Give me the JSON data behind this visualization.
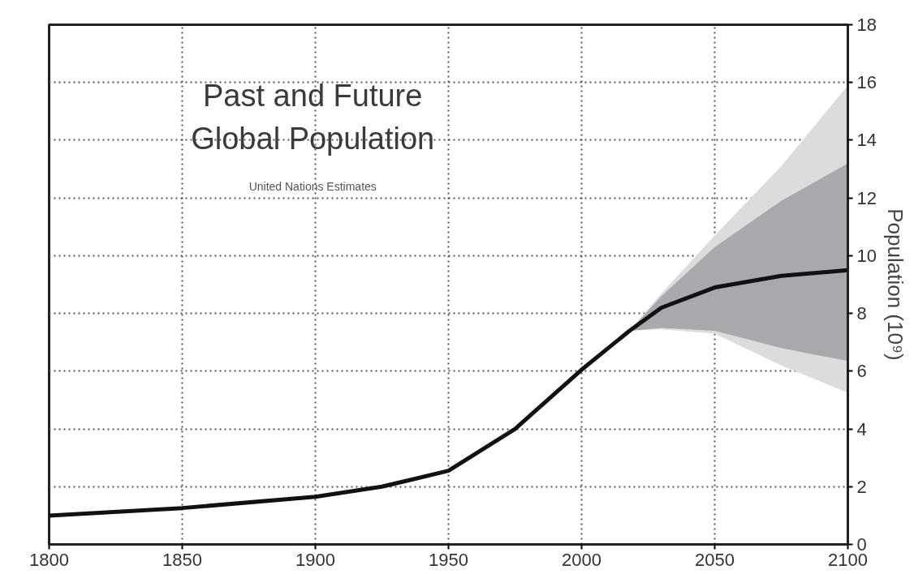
{
  "chart_data": {
    "type": "line",
    "title": "Past and Future Global Population",
    "subtitle": "United Nations Estimates",
    "y2label": "Population (10⁹)",
    "xlim": [
      1800,
      2100
    ],
    "xticks": [
      1800,
      1850,
      1900,
      1950,
      2000,
      2050,
      2100
    ],
    "y2lim": [
      0,
      18
    ],
    "y2ticks": [
      0,
      2,
      4,
      6,
      8,
      10,
      12,
      14,
      16,
      18
    ],
    "grid": true,
    "line_style": "solid",
    "marker": "none",
    "series": [
      {
        "axis": "y2",
        "color": "#dcdcdc",
        "x": [
          2018,
          2030,
          2050,
          2075,
          2100
        ],
        "values": [
          null,
          null,
          null,
          null,
          null
        ],
        "lower": [
          7.4,
          7.45,
          7.3,
          6.2,
          5.25
        ],
        "upper": [
          7.4,
          8.7,
          10.7,
          13.1,
          15.9
        ]
      },
      {
        "axis": "y2",
        "color": "#a9a9ad",
        "x": [
          2018,
          2030,
          2050,
          2075,
          2100
        ],
        "values": [
          null,
          null,
          null,
          null,
          null
        ],
        "lower": [
          7.4,
          7.5,
          7.4,
          6.8,
          6.35
        ],
        "upper": [
          7.4,
          8.6,
          10.3,
          11.9,
          13.2
        ]
      },
      {
        "axis": "y2",
        "color": "#111111",
        "x": [
          1800,
          1850,
          1900,
          1925,
          1950,
          1975,
          2000,
          2018,
          2030,
          2050,
          2075,
          2100
        ],
        "values": [
          1.0,
          1.26,
          1.65,
          2.0,
          2.55,
          4.0,
          6.05,
          7.4,
          8.2,
          8.9,
          9.3,
          9.5
        ]
      }
    ]
  }
}
